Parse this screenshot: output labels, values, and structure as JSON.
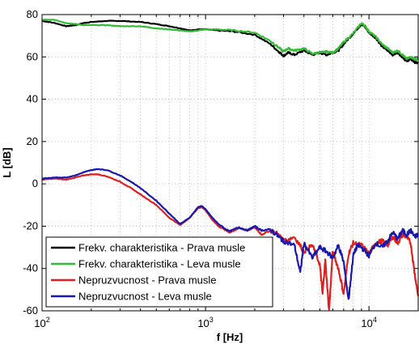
{
  "chart_data": {
    "type": "line",
    "title": "",
    "xlabel": "f [Hz]",
    "ylabel": "L [dB]",
    "xscale": "log",
    "xlim": [
      100,
      20000
    ],
    "ylim": [
      -60,
      80
    ],
    "grid": true,
    "legend_position": "bottom-left",
    "x_ticks": [
      {
        "value": 100,
        "base": "10",
        "exp": "2"
      },
      {
        "value": 1000,
        "base": "10",
        "exp": "3"
      },
      {
        "value": 10000,
        "base": "10",
        "exp": "4"
      }
    ],
    "y_ticks": [
      "-60",
      "-40",
      "-20",
      "0",
      "20",
      "40",
      "60",
      "80"
    ],
    "series": [
      {
        "name": "Frekv. charakteristika - Prava musle",
        "color": "#000000",
        "points": [
          [
            100,
            77
          ],
          [
            120,
            76
          ],
          [
            140,
            74.5
          ],
          [
            160,
            75
          ],
          [
            180,
            76
          ],
          [
            200,
            76.5
          ],
          [
            250,
            77
          ],
          [
            300,
            77
          ],
          [
            400,
            76.5
          ],
          [
            500,
            75.5
          ],
          [
            600,
            74.5
          ],
          [
            700,
            73.5
          ],
          [
            800,
            72.5
          ],
          [
            900,
            73
          ],
          [
            1000,
            73
          ],
          [
            1200,
            72.5
          ],
          [
            1500,
            72
          ],
          [
            2000,
            70.5
          ],
          [
            2500,
            66
          ],
          [
            2800,
            62.5
          ],
          [
            3000,
            60.5
          ],
          [
            3200,
            62
          ],
          [
            3500,
            61
          ],
          [
            4000,
            63
          ],
          [
            4500,
            61
          ],
          [
            5000,
            62
          ],
          [
            5500,
            61
          ],
          [
            6000,
            62
          ],
          [
            6500,
            63
          ],
          [
            7000,
            66
          ],
          [
            8000,
            71
          ],
          [
            9000,
            75.5
          ],
          [
            9500,
            74
          ],
          [
            10000,
            71.5
          ],
          [
            11000,
            69
          ],
          [
            12000,
            65
          ],
          [
            13000,
            63
          ],
          [
            14000,
            61
          ],
          [
            15000,
            62
          ],
          [
            16000,
            60
          ],
          [
            17000,
            58
          ],
          [
            18000,
            59
          ],
          [
            19000,
            57.5
          ],
          [
            20000,
            57
          ]
        ]
      },
      {
        "name": "Frekv. charakteristika - Leva musle",
        "color": "#33bb33",
        "points": [
          [
            100,
            77.5
          ],
          [
            120,
            77.5
          ],
          [
            140,
            76
          ],
          [
            160,
            75.5
          ],
          [
            180,
            75
          ],
          [
            200,
            75
          ],
          [
            250,
            75
          ],
          [
            300,
            74.5
          ],
          [
            400,
            74.5
          ],
          [
            500,
            73.5
          ],
          [
            600,
            73
          ],
          [
            700,
            72.5
          ],
          [
            800,
            72
          ],
          [
            900,
            72.5
          ],
          [
            1000,
            73
          ],
          [
            1200,
            73
          ],
          [
            1500,
            72.5
          ],
          [
            2000,
            71.5
          ],
          [
            2500,
            67.5
          ],
          [
            2800,
            64.5
          ],
          [
            3000,
            62.5
          ],
          [
            3200,
            64
          ],
          [
            3500,
            63
          ],
          [
            4000,
            64
          ],
          [
            4500,
            61.5
          ],
          [
            5000,
            62
          ],
          [
            5500,
            62.5
          ],
          [
            6000,
            62
          ],
          [
            6500,
            64
          ],
          [
            7000,
            67
          ],
          [
            8000,
            71
          ],
          [
            9000,
            76
          ],
          [
            9500,
            74.5
          ],
          [
            10000,
            72
          ],
          [
            11000,
            69.5
          ],
          [
            12000,
            66
          ],
          [
            13000,
            64
          ],
          [
            14000,
            62
          ],
          [
            15000,
            63
          ],
          [
            16000,
            61
          ],
          [
            17000,
            59
          ],
          [
            18000,
            60
          ],
          [
            19000,
            59
          ],
          [
            20000,
            59
          ]
        ]
      },
      {
        "name": "Nepruzvucnost - Prava musle",
        "color": "#e02020",
        "points": [
          [
            100,
            2
          ],
          [
            120,
            2.5
          ],
          [
            140,
            2
          ],
          [
            160,
            3
          ],
          [
            180,
            4
          ],
          [
            200,
            4.5
          ],
          [
            220,
            4.5
          ],
          [
            250,
            3.5
          ],
          [
            300,
            1
          ],
          [
            350,
            -2
          ],
          [
            400,
            -5
          ],
          [
            500,
            -10
          ],
          [
            600,
            -16
          ],
          [
            700,
            -19.5
          ],
          [
            800,
            -16
          ],
          [
            900,
            -11.5
          ],
          [
            950,
            -11
          ],
          [
            1000,
            -12.5
          ],
          [
            1100,
            -17
          ],
          [
            1200,
            -20
          ],
          [
            1400,
            -23
          ],
          [
            1600,
            -21
          ],
          [
            1800,
            -22
          ],
          [
            2000,
            -20.5
          ],
          [
            2200,
            -24
          ],
          [
            2500,
            -22
          ],
          [
            2800,
            -24
          ],
          [
            3000,
            -27
          ],
          [
            3500,
            -25
          ],
          [
            4000,
            -32
          ],
          [
            4500,
            -29
          ],
          [
            5000,
            -38
          ],
          [
            5200,
            -52
          ],
          [
            5400,
            -36
          ],
          [
            5700,
            -60
          ],
          [
            6000,
            -32
          ],
          [
            6500,
            -40
          ],
          [
            7000,
            -52
          ],
          [
            7500,
            -33
          ],
          [
            8000,
            -28
          ],
          [
            9000,
            -29
          ],
          [
            10000,
            -33
          ],
          [
            11000,
            -28
          ],
          [
            12000,
            -27
          ],
          [
            13000,
            -29
          ],
          [
            14000,
            -25
          ],
          [
            15000,
            -28
          ],
          [
            16000,
            -24
          ],
          [
            17000,
            -25
          ],
          [
            18000,
            -28
          ],
          [
            19000,
            -42
          ],
          [
            20000,
            -53
          ]
        ]
      },
      {
        "name": "Nepruzvucnost - Leva musle",
        "color": "#1818b0",
        "points": [
          [
            100,
            2.5
          ],
          [
            120,
            3
          ],
          [
            140,
            3
          ],
          [
            160,
            4
          ],
          [
            180,
            5.5
          ],
          [
            200,
            6.5
          ],
          [
            220,
            7
          ],
          [
            250,
            6.5
          ],
          [
            300,
            4
          ],
          [
            350,
            1
          ],
          [
            400,
            -2
          ],
          [
            500,
            -8
          ],
          [
            600,
            -14
          ],
          [
            700,
            -19
          ],
          [
            800,
            -16
          ],
          [
            900,
            -11
          ],
          [
            950,
            -10.5
          ],
          [
            1000,
            -12
          ],
          [
            1100,
            -16
          ],
          [
            1200,
            -19
          ],
          [
            1400,
            -22.5
          ],
          [
            1600,
            -20.5
          ],
          [
            1800,
            -22
          ],
          [
            2000,
            -20
          ],
          [
            2200,
            -22
          ],
          [
            2500,
            -21.5
          ],
          [
            2800,
            -25
          ],
          [
            3000,
            -27
          ],
          [
            3500,
            -29
          ],
          [
            3800,
            -42
          ],
          [
            4000,
            -28
          ],
          [
            4500,
            -35
          ],
          [
            5000,
            -30
          ],
          [
            5500,
            -32
          ],
          [
            6000,
            -35
          ],
          [
            6500,
            -29
          ],
          [
            7000,
            -37
          ],
          [
            7500,
            -55
          ],
          [
            8000,
            -34
          ],
          [
            8500,
            -29
          ],
          [
            9000,
            -30
          ],
          [
            10000,
            -34
          ],
          [
            11000,
            -28
          ],
          [
            12000,
            -30
          ],
          [
            13000,
            -27
          ],
          [
            14000,
            -23
          ],
          [
            15000,
            -26
          ],
          [
            16000,
            -22
          ],
          [
            17000,
            -24
          ],
          [
            18000,
            -22
          ],
          [
            19000,
            -25
          ],
          [
            20000,
            -24
          ]
        ]
      }
    ]
  }
}
